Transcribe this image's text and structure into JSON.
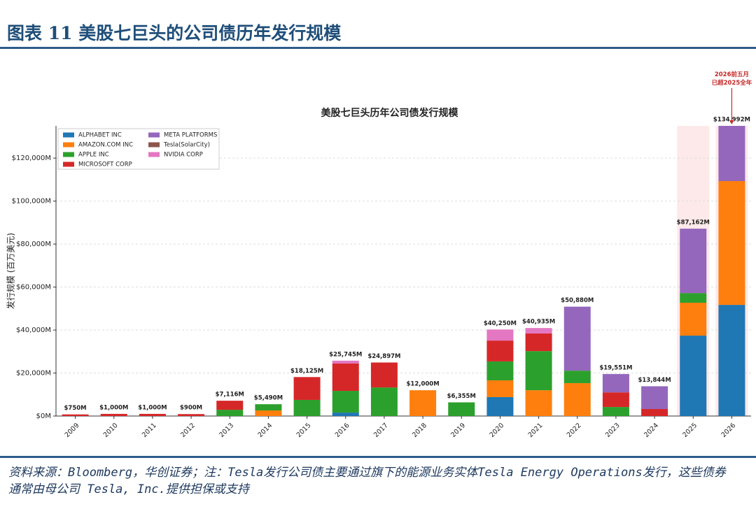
{
  "header": {
    "title": "图表 11 美股七巨头的公司债历年发行规模"
  },
  "chart_data": {
    "type": "stacked-bar",
    "title": "美股七巨头历年公司债发行规模",
    "y_label": "发行规模 (百万美元)",
    "annotation": "2026前五月已超2025全年",
    "categories": [
      "2009",
      "2010",
      "2011",
      "2012",
      "2013",
      "2014",
      "2015",
      "2016",
      "2017",
      "2018",
      "2019",
      "2020",
      "2021",
      "2022",
      "2023",
      "2024",
      "2025",
      "2026"
    ],
    "series": [
      {
        "name": "ALPHABET INC",
        "color": "#1f77b4",
        "values": [
          0,
          0,
          0,
          0,
          0,
          0,
          0,
          1600,
          0,
          0,
          0,
          8800,
          0,
          0,
          0,
          0,
          37400,
          51700
        ]
      },
      {
        "name": "AMAZON.COM INC",
        "color": "#ff7f0e",
        "values": [
          0,
          0,
          0,
          0,
          0,
          2600,
          0,
          0,
          0,
          12000,
          0,
          7800,
          12000,
          15300,
          0,
          0,
          15300,
          57600
        ]
      },
      {
        "name": "APPLE INC",
        "color": "#2ca02c",
        "values": [
          0,
          0,
          0,
          0,
          2900,
          2890,
          7500,
          10100,
          13300,
          0,
          6355,
          8800,
          18200,
          5800,
          4200,
          0,
          4500,
          0
        ]
      },
      {
        "name": "MICROSOFT CORP",
        "color": "#d62728",
        "values": [
          750,
          1000,
          1000,
          900,
          4216,
          0,
          10625,
          12700,
          11597,
          0,
          0,
          9700,
          8200,
          0,
          6800,
          3250,
          0,
          0
        ]
      },
      {
        "name": "META PLATFORMS",
        "color": "#9467bd",
        "values": [
          0,
          0,
          0,
          0,
          0,
          0,
          0,
          0,
          0,
          0,
          0,
          0,
          0,
          29780,
          8551,
          10594,
          29962,
          25692
        ]
      },
      {
        "name": "Tesla(SolarCity)",
        "color": "#8c564b",
        "values": [
          0,
          0,
          0,
          0,
          0,
          0,
          0,
          0,
          0,
          0,
          0,
          0,
          0,
          0,
          0,
          0,
          0,
          0
        ]
      },
      {
        "name": "NVIDIA CORP",
        "color": "#e377c2",
        "values": [
          0,
          0,
          0,
          0,
          0,
          0,
          0,
          1345,
          0,
          0,
          0,
          5150,
          2535,
          0,
          0,
          0,
          0,
          0
        ]
      }
    ],
    "totals": {
      "values": [
        750,
        1000,
        1000,
        900,
        7116,
        5490,
        18125,
        25745,
        24897,
        12000,
        6355,
        40250,
        40935,
        50880,
        19551,
        13844,
        87162,
        134992
      ],
      "value_labels": [
        "$750M",
        "$1,000M",
        "$1,000M",
        "$900M",
        "$7,116M",
        "$5,490M",
        "$18,125M",
        "$25,745M",
        "$24,897M",
        "$12,000M",
        "$6,355M",
        "$40,250M",
        "$40,935M",
        "$50,880M",
        "$19,551M",
        "$13,844M",
        "$87,162M",
        "$134,992M"
      ]
    },
    "ylim": [
      0,
      135000
    ],
    "yticks": [
      {
        "value": 0,
        "label": "$0M"
      },
      {
        "value": 20000,
        "label": "$20,000M"
      },
      {
        "value": 40000,
        "label": "$40,000M"
      },
      {
        "value": 60000,
        "label": "$60,000M"
      },
      {
        "value": 80000,
        "label": "$80,000M"
      },
      {
        "value": 100000,
        "label": "$100,000M"
      },
      {
        "value": 120000,
        "label": "$120,000M"
      }
    ],
    "grid": true,
    "legend": "upper left"
  },
  "footer": {
    "source": "资料来源：Bloomberg，华创证券；注：Tesla发行公司债主要通过旗下的能源业务实体Tesla Energy Operations发行，这些债券通常由母公司 Tesla, Inc.提供担保或支持"
  }
}
